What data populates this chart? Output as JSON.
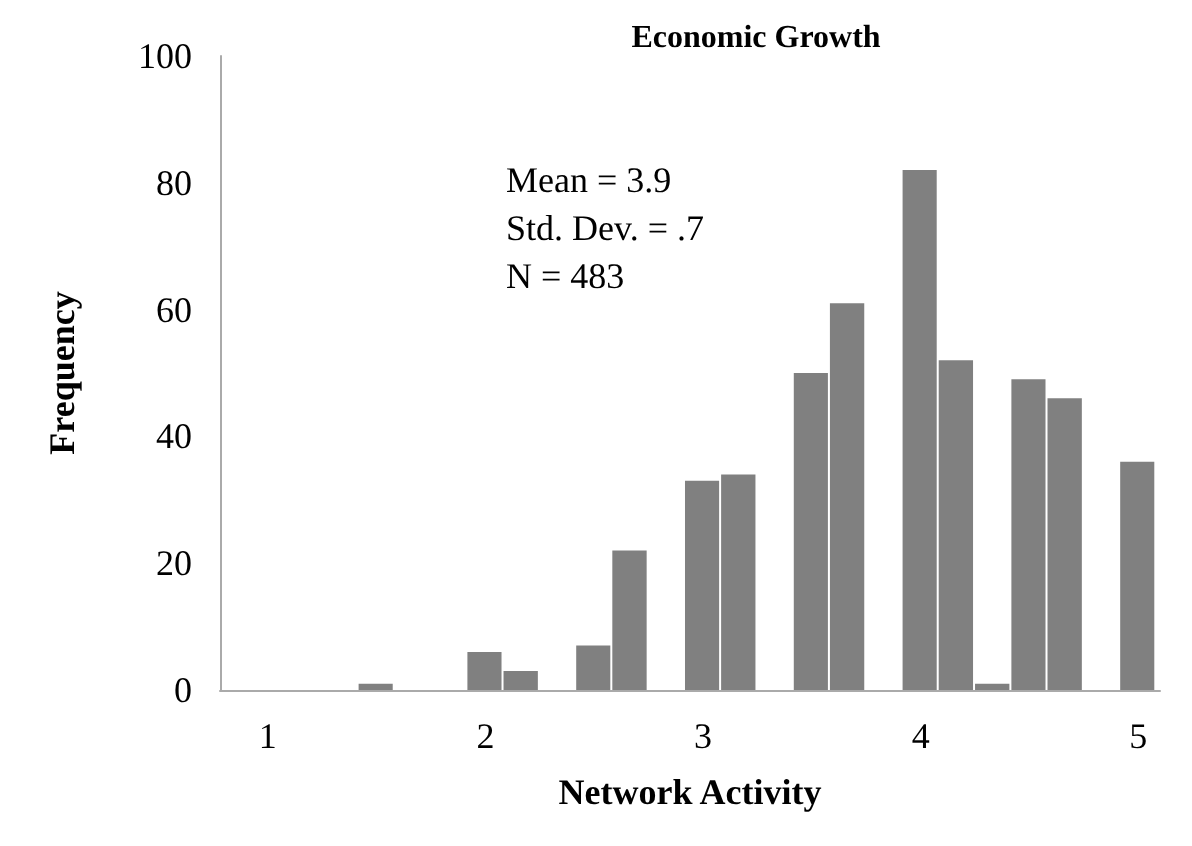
{
  "chart_data": {
    "type": "histogram",
    "title": "Economic Growth",
    "xlabel": "Network Activity",
    "ylabel": "Frequency",
    "annotations": [
      "Mean = 3.9\nStd. Dev. = .7\nN = 483"
    ],
    "bins": [
      0.917,
      1.083,
      1.25,
      1.417,
      1.583,
      1.75,
      1.917,
      2.083,
      2.25,
      2.417,
      2.583,
      2.75,
      2.917,
      3.083,
      3.25,
      3.417,
      3.583,
      3.75,
      3.917,
      4.083,
      4.25,
      4.417,
      4.583,
      4.75,
      4.917,
      5.083
    ],
    "values": [
      0,
      0,
      0,
      1,
      0,
      0,
      6,
      3,
      0,
      7,
      22,
      0,
      33,
      34,
      0,
      50,
      61,
      0,
      82,
      52,
      1,
      49,
      46,
      0,
      36
    ],
    "color": "#808080",
    "xlim": [
      0.78,
      5.1
    ],
    "xticks": [
      1,
      2,
      3,
      4,
      5
    ],
    "ylim": [
      0,
      100
    ],
    "yticks": [
      0,
      20,
      40,
      60,
      80,
      100
    ],
    "grid": false
  }
}
